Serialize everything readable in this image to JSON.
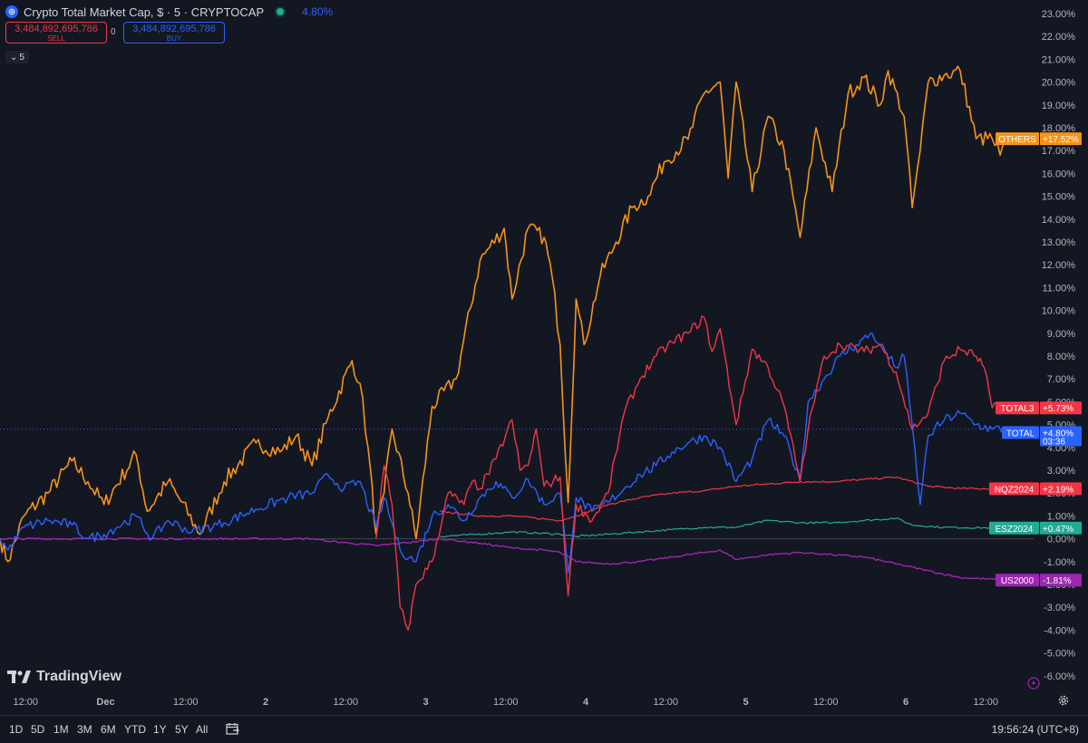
{
  "header": {
    "title": "Crypto Total Market Cap, $ · 5 · CRYPTOCAP",
    "icon": "crypto-cap-icon",
    "change": "4.80%",
    "sell_value": "3,484,892,695,786",
    "sell_label": "SELL",
    "buy_value": "3,484,892,695,786",
    "buy_label": "BUY",
    "spread": "0",
    "interval": "5"
  },
  "logo": {
    "text": "TradingView"
  },
  "toolbar": {
    "timeframes": [
      "1D",
      "5D",
      "1M",
      "3M",
      "6M",
      "YTD",
      "1Y",
      "5Y",
      "All"
    ],
    "clock": "19:56:24 (UTC+8)"
  },
  "colors": {
    "background": "#131722",
    "OTHERS": "#f7931a",
    "TOTAL3": "#f23645",
    "TOTAL": "#2962ff",
    "NQZ2024": "#f23645",
    "ESZ2024": "#22ab94",
    "US2000": "#9c27b0"
  },
  "chart_data": {
    "type": "line",
    "y_unit": "%",
    "ylim": [
      -6.5,
      23.5
    ],
    "y_ticks": [
      "23.00%",
      "22.00%",
      "21.00%",
      "20.00%",
      "19.00%",
      "18.00%",
      "17.00%",
      "16.00%",
      "15.00%",
      "14.00%",
      "13.00%",
      "12.00%",
      "11.00%",
      "10.00%",
      "9.00%",
      "8.00%",
      "7.00%",
      "6.00%",
      "5.00%",
      "4.00%",
      "3.00%",
      "2.00%",
      "1.00%",
      "0.00%",
      "-1.00%",
      "-2.00%",
      "-3.00%",
      "-4.00%",
      "-5.00%",
      "-6.00%"
    ],
    "x_labels": [
      "12:00",
      "Dec",
      "12:00",
      "2",
      "12:00",
      "3",
      "12:00",
      "4",
      "12:00",
      "5",
      "12:00",
      "6",
      "12:00"
    ],
    "x_range_days": [
      0,
      6.55
    ],
    "x_label_positions_days": [
      0.5,
      1,
      1.5,
      2,
      2.5,
      3,
      3.5,
      4,
      4.5,
      5,
      5.5,
      6,
      6.5
    ],
    "series": [
      {
        "name": "OTHERS",
        "color": "#f7931a",
        "last_label": "+17.52%",
        "width": 1.6,
        "points": [
          [
            0,
            0
          ],
          [
            0.05,
            -1
          ],
          [
            0.15,
            1
          ],
          [
            0.3,
            2
          ],
          [
            0.45,
            3.4
          ],
          [
            0.55,
            2.5
          ],
          [
            0.65,
            1.5
          ],
          [
            0.85,
            3.7
          ],
          [
            0.92,
            1.2
          ],
          [
            1.05,
            2.5
          ],
          [
            1.1,
            2
          ],
          [
            1.25,
            0.2
          ],
          [
            1.4,
            2.5
          ],
          [
            1.6,
            4.2
          ],
          [
            1.75,
            3.8
          ],
          [
            1.85,
            4.5
          ],
          [
            1.95,
            3.2
          ],
          [
            2.05,
            5.3
          ],
          [
            2.2,
            7.8
          ],
          [
            2.25,
            6.8
          ],
          [
            2.3,
            4
          ],
          [
            2.35,
            0.2
          ],
          [
            2.4,
            2
          ],
          [
            2.45,
            4.8
          ],
          [
            2.55,
            2
          ],
          [
            2.6,
            0
          ],
          [
            2.7,
            5.8
          ],
          [
            2.85,
            7
          ],
          [
            3.0,
            12.2
          ],
          [
            3.15,
            13.6
          ],
          [
            3.2,
            10.5
          ],
          [
            3.3,
            13.6
          ],
          [
            3.4,
            13.2
          ],
          [
            3.45,
            11.5
          ],
          [
            3.5,
            8.5
          ],
          [
            3.55,
            1.6
          ],
          [
            3.6,
            10.5
          ],
          [
            3.65,
            8.5
          ],
          [
            3.75,
            11.5
          ],
          [
            3.85,
            13
          ],
          [
            3.95,
            14.5
          ],
          [
            4.05,
            15
          ],
          [
            4.15,
            16.5
          ],
          [
            4.3,
            17.5
          ],
          [
            4.4,
            19.5
          ],
          [
            4.5,
            20
          ],
          [
            4.55,
            15.8
          ],
          [
            4.6,
            20
          ],
          [
            4.7,
            15.2
          ],
          [
            4.8,
            18.5
          ],
          [
            4.9,
            17
          ],
          [
            5.0,
            13.2
          ],
          [
            5.1,
            18
          ],
          [
            5.2,
            15.2
          ],
          [
            5.3,
            19.5
          ],
          [
            5.4,
            20.2
          ],
          [
            5.5,
            19
          ],
          [
            5.55,
            20.5
          ],
          [
            5.65,
            18.5
          ],
          [
            5.7,
            14.5
          ],
          [
            5.75,
            17
          ],
          [
            5.8,
            20
          ],
          [
            5.9,
            20.3
          ],
          [
            6.0,
            20.5
          ],
          [
            6.1,
            17.52
          ],
          [
            6.2,
            17.52
          ],
          [
            6.25,
            16.8
          ],
          [
            6.3,
            17.52
          ]
        ]
      },
      {
        "name": "TOTAL3",
        "color": "#f23645",
        "last_label": "+5.73%",
        "width": 1.4,
        "points": [
          [
            2.35,
            0
          ],
          [
            2.4,
            3.2
          ],
          [
            2.45,
            1.5
          ],
          [
            2.5,
            -3
          ],
          [
            2.55,
            -4
          ],
          [
            2.6,
            -2
          ],
          [
            2.7,
            -1
          ],
          [
            2.8,
            2
          ],
          [
            2.9,
            1.5
          ],
          [
            2.95,
            2.5
          ],
          [
            3.0,
            2.2
          ],
          [
            3.1,
            3.5
          ],
          [
            3.2,
            5.2
          ],
          [
            3.25,
            3
          ],
          [
            3.3,
            3.2
          ],
          [
            3.35,
            4.8
          ],
          [
            3.4,
            2.3
          ],
          [
            3.5,
            2.7
          ],
          [
            3.55,
            -2.5
          ],
          [
            3.6,
            1.5
          ],
          [
            3.7,
            0.8
          ],
          [
            3.8,
            2
          ],
          [
            3.9,
            5.5
          ],
          [
            4.0,
            7
          ],
          [
            4.1,
            8
          ],
          [
            4.2,
            8.6
          ],
          [
            4.3,
            9
          ],
          [
            4.4,
            9.7
          ],
          [
            4.45,
            8.2
          ],
          [
            4.5,
            9.2
          ],
          [
            4.6,
            5
          ],
          [
            4.7,
            8.3
          ],
          [
            4.8,
            7.5
          ],
          [
            4.9,
            5.8
          ],
          [
            5.0,
            2.5
          ],
          [
            5.05,
            4.8
          ],
          [
            5.15,
            8
          ],
          [
            5.25,
            8.5
          ],
          [
            5.4,
            8.2
          ],
          [
            5.5,
            8.5
          ],
          [
            5.6,
            7.3
          ],
          [
            5.7,
            4.8
          ],
          [
            5.8,
            5.5
          ],
          [
            5.9,
            7.8
          ],
          [
            6.0,
            8.3
          ],
          [
            6.1,
            8
          ],
          [
            6.15,
            7.5
          ],
          [
            6.2,
            5.73
          ],
          [
            6.3,
            5.73
          ]
        ]
      },
      {
        "name": "TOTAL",
        "color": "#2962ff",
        "last_label": "+4.80%",
        "sub_label": "03:36",
        "width": 1.4,
        "points": [
          [
            0,
            0
          ],
          [
            0.05,
            -0.5
          ],
          [
            0.15,
            0.5
          ],
          [
            0.3,
            0.8
          ],
          [
            0.45,
            0.6
          ],
          [
            0.55,
            0
          ],
          [
            0.65,
            0.2
          ],
          [
            0.85,
            1
          ],
          [
            0.95,
            0
          ],
          [
            1.05,
            0.8
          ],
          [
            1.2,
            0.3
          ],
          [
            1.4,
            0.7
          ],
          [
            1.6,
            1.3
          ],
          [
            1.8,
            1.8
          ],
          [
            1.95,
            2
          ],
          [
            2.05,
            2.8
          ],
          [
            2.15,
            2.2
          ],
          [
            2.25,
            2.5
          ],
          [
            2.35,
            0.5
          ],
          [
            2.4,
            1.8
          ],
          [
            2.5,
            -0.5
          ],
          [
            2.6,
            -1
          ],
          [
            2.7,
            1
          ],
          [
            2.8,
            1.5
          ],
          [
            2.9,
            0.8
          ],
          [
            3.0,
            1.8
          ],
          [
            3.1,
            2.5
          ],
          [
            3.2,
            1.8
          ],
          [
            3.3,
            2.6
          ],
          [
            3.4,
            1.5
          ],
          [
            3.5,
            2
          ],
          [
            3.55,
            -1.5
          ],
          [
            3.6,
            1.8
          ],
          [
            3.7,
            1.2
          ],
          [
            3.8,
            1.6
          ],
          [
            3.9,
            2.2
          ],
          [
            4.0,
            2.8
          ],
          [
            4.1,
            3.2
          ],
          [
            4.2,
            3.8
          ],
          [
            4.3,
            4.2
          ],
          [
            4.4,
            4.5
          ],
          [
            4.5,
            4
          ],
          [
            4.6,
            2.5
          ],
          [
            4.7,
            3.5
          ],
          [
            4.8,
            5.2
          ],
          [
            4.9,
            4.5
          ],
          [
            5.0,
            2.6
          ],
          [
            5.05,
            6
          ],
          [
            5.15,
            7
          ],
          [
            5.25,
            8
          ],
          [
            5.35,
            8.5
          ],
          [
            5.45,
            9
          ],
          [
            5.5,
            8.5
          ],
          [
            5.6,
            7.5
          ],
          [
            5.65,
            8
          ],
          [
            5.7,
            5
          ],
          [
            5.75,
            1.5
          ],
          [
            5.8,
            4.5
          ],
          [
            5.9,
            5.2
          ],
          [
            6.0,
            5.5
          ],
          [
            6.1,
            5
          ],
          [
            6.2,
            4.8
          ],
          [
            6.3,
            4.8
          ]
        ]
      },
      {
        "name": "NQZ2024",
        "color": "#f23645",
        "last_label": "+2.19%",
        "width": 1.2,
        "points": [
          [
            2.75,
            1.2
          ],
          [
            3.0,
            1.0
          ],
          [
            3.2,
            1.0
          ],
          [
            3.5,
            0.8
          ],
          [
            3.6,
            1.0
          ],
          [
            3.8,
            1.5
          ],
          [
            4.0,
            1.8
          ],
          [
            4.2,
            2.0
          ],
          [
            4.4,
            2.1
          ],
          [
            4.6,
            2.3
          ],
          [
            4.8,
            2.4
          ],
          [
            5.0,
            2.5
          ],
          [
            5.2,
            2.5
          ],
          [
            5.4,
            2.6
          ],
          [
            5.6,
            2.7
          ],
          [
            5.8,
            2.3
          ],
          [
            6.0,
            2.2
          ],
          [
            6.3,
            2.19
          ]
        ]
      },
      {
        "name": "ESZ2024",
        "color": "#22ab94",
        "last_label": "+0.47%",
        "width": 1.2,
        "points": [
          [
            2.75,
            0.1
          ],
          [
            3.0,
            0.2
          ],
          [
            3.2,
            0.3
          ],
          [
            3.5,
            0.2
          ],
          [
            3.6,
            0.1
          ],
          [
            3.8,
            0.2
          ],
          [
            4.0,
            0.3
          ],
          [
            4.2,
            0.4
          ],
          [
            4.4,
            0.5
          ],
          [
            4.6,
            0.5
          ],
          [
            4.8,
            0.8
          ],
          [
            5.0,
            0.7
          ],
          [
            5.2,
            0.7
          ],
          [
            5.4,
            0.8
          ],
          [
            5.6,
            0.9
          ],
          [
            5.7,
            0.6
          ],
          [
            5.9,
            0.5
          ],
          [
            6.3,
            0.47
          ]
        ]
      },
      {
        "name": "US2000",
        "color": "#9c27b0",
        "last_label": "-1.81%",
        "width": 1.4,
        "points": [
          [
            0,
            0
          ],
          [
            1.0,
            0
          ],
          [
            1.95,
            0
          ],
          [
            2.05,
            -0.1
          ],
          [
            2.2,
            -0.2
          ],
          [
            2.35,
            -0.3
          ],
          [
            2.5,
            -0.2
          ],
          [
            2.75,
            0
          ],
          [
            3.0,
            -0.2
          ],
          [
            3.2,
            -0.4
          ],
          [
            3.4,
            -0.5
          ],
          [
            3.5,
            -0.6
          ],
          [
            3.6,
            -1
          ],
          [
            3.8,
            -1.1
          ],
          [
            4.0,
            -1.0
          ],
          [
            4.2,
            -0.8
          ],
          [
            4.4,
            -0.6
          ],
          [
            4.5,
            -0.5
          ],
          [
            4.6,
            -0.9
          ],
          [
            4.8,
            -0.7
          ],
          [
            5.0,
            -0.6
          ],
          [
            5.2,
            -0.7
          ],
          [
            5.4,
            -0.8
          ],
          [
            5.6,
            -1.1
          ],
          [
            5.8,
            -1.4
          ],
          [
            6.0,
            -1.7
          ],
          [
            6.3,
            -1.81
          ]
        ]
      }
    ]
  }
}
